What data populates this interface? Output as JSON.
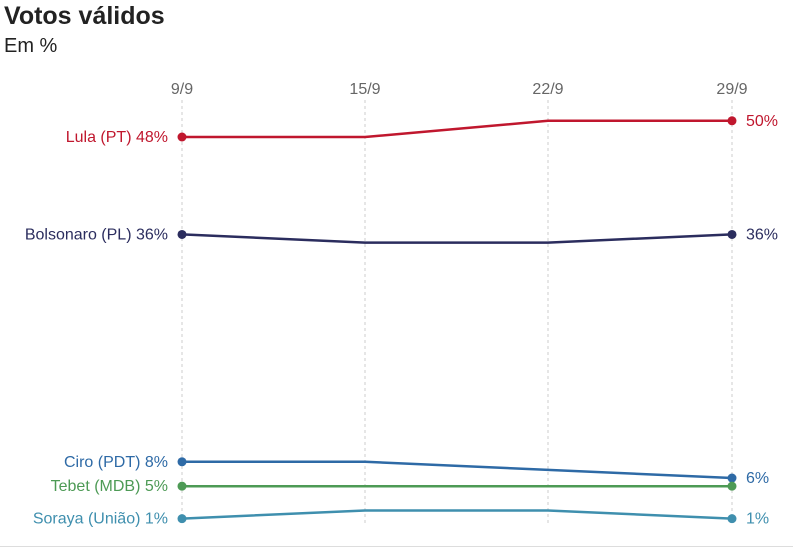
{
  "header": {
    "title": "Votos válidos",
    "subtitle": "Em %"
  },
  "chart_data": {
    "type": "line",
    "x": [
      "9/9",
      "15/9",
      "22/9",
      "29/9"
    ],
    "series": [
      {
        "name": "Lula (PT)",
        "color": "#c0172e",
        "values": [
          48,
          48,
          50,
          50
        ],
        "start_label": "Lula (PT) 48%",
        "end_label": "50%"
      },
      {
        "name": "Bolsonaro (PL)",
        "color": "#2b2d5e",
        "values": [
          36,
          35,
          35,
          36
        ],
        "start_label": "Bolsonaro (PL) 36%",
        "end_label": "36%"
      },
      {
        "name": "Ciro (PDT)",
        "color": "#2e6aa6",
        "values": [
          8,
          8,
          7,
          6
        ],
        "start_label": "Ciro (PDT) 8%",
        "end_label": "6%"
      },
      {
        "name": "Tebet (MDB)",
        "color": "#4d9a55",
        "values": [
          5,
          5,
          5,
          5
        ],
        "start_label": "Tebet (MDB) 5%",
        "end_label": ""
      },
      {
        "name": "Soraya (União)",
        "color": "#3f8fae",
        "values": [
          1,
          2,
          2,
          1
        ],
        "start_label": "Soraya (União) 1%",
        "end_label": "1%"
      }
    ],
    "grid": "vertical dashed"
  }
}
